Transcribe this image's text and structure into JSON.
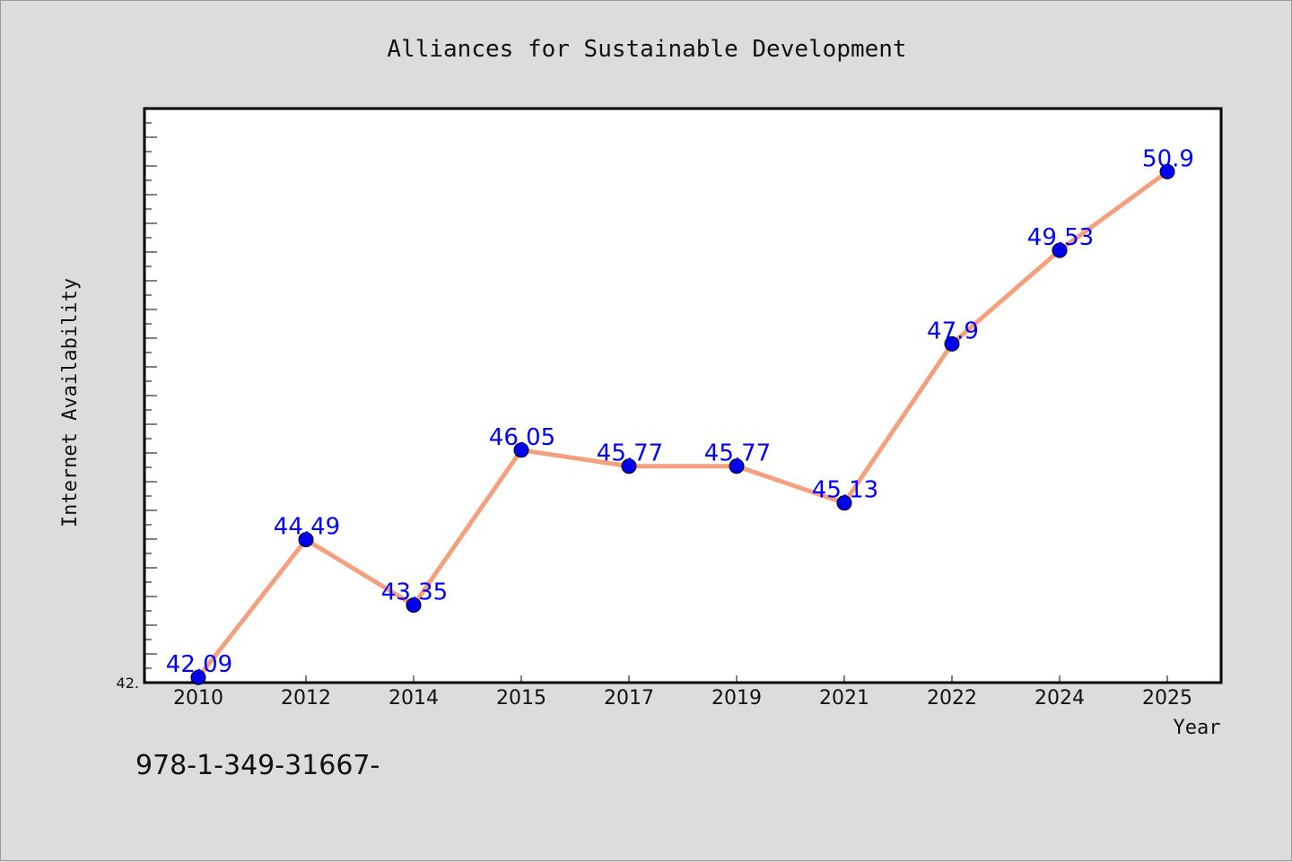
{
  "chart_data": {
    "type": "line",
    "title": "Alliances for Sustainable Development",
    "xlabel": "Year",
    "ylabel": "Internet Availability",
    "categories": [
      "2010",
      "2012",
      "2014",
      "2015",
      "2017",
      "2019",
      "2021",
      "2022",
      "2024",
      "2025"
    ],
    "series": [
      {
        "values": [
          42.09,
          44.49,
          43.35,
          46.05,
          45.77,
          45.77,
          45.13,
          47.9,
          49.53,
          50.9
        ],
        "data_labels": [
          "42.09",
          "44.49",
          "43.35",
          "46.05",
          "45.77",
          "45.77",
          "45.13",
          "47.9",
          "49.53",
          "50.9"
        ]
      }
    ],
    "y_tick_labels": [
      "42."
    ],
    "ylim": [
      42.0,
      52.0
    ],
    "grid": false,
    "line_color": "#f4a07e",
    "marker_color": "#0000ee",
    "data_label_color": "#0000ff"
  },
  "footer_text": "978-1-349-31667-"
}
